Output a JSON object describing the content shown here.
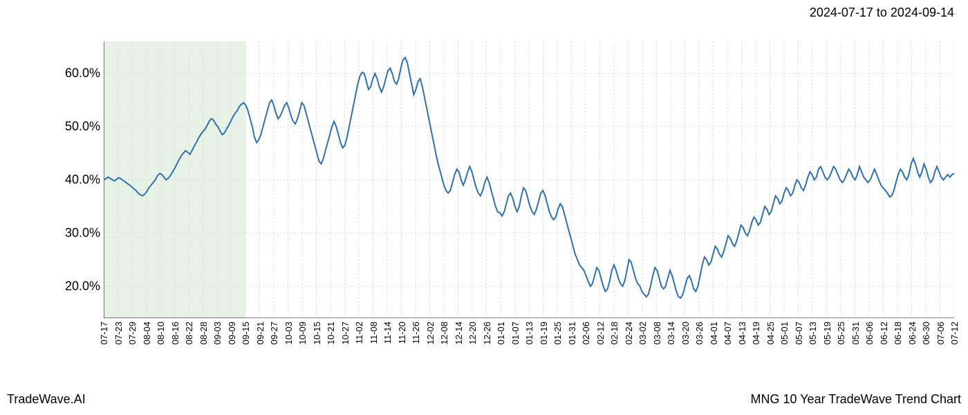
{
  "header": {
    "date_range": "2024-07-17 to 2024-09-14"
  },
  "footer": {
    "left": "TradeWave.AI",
    "right": "MNG 10 Year TradeWave Trend Chart"
  },
  "chart": {
    "type": "line",
    "background_color": "#ffffff",
    "grid_color": "#cccccc",
    "grid_dash": "2,3",
    "spine_color": "#000000",
    "line_color": "#2e6fae",
    "line_width": 2,
    "highlight_fill": "#d9e8d4",
    "highlight_opacity": 0.6,
    "highlight_start_label": "07-17",
    "highlight_end_label": "09-15",
    "ylim": [
      14,
      66
    ],
    "yticks": [
      20,
      30,
      40,
      50,
      60
    ],
    "ytick_labels": [
      "20.0%",
      "30.0%",
      "40.0%",
      "50.0%",
      "60.0%"
    ],
    "ytick_fontsize": 18,
    "xtick_fontsize": 13,
    "xtick_rotation": 90,
    "x_labels": [
      "07-17",
      "07-23",
      "07-29",
      "08-04",
      "08-10",
      "08-16",
      "08-22",
      "08-28",
      "09-03",
      "09-09",
      "09-15",
      "09-21",
      "09-27",
      "10-03",
      "10-09",
      "10-15",
      "10-21",
      "10-27",
      "11-02",
      "11-08",
      "11-14",
      "11-20",
      "11-26",
      "12-02",
      "12-08",
      "12-14",
      "12-20",
      "12-26",
      "01-01",
      "01-07",
      "01-13",
      "01-19",
      "01-25",
      "01-31",
      "02-06",
      "02-12",
      "02-18",
      "02-24",
      "03-02",
      "03-08",
      "03-14",
      "03-20",
      "03-26",
      "04-01",
      "04-07",
      "04-13",
      "04-19",
      "04-25",
      "05-01",
      "05-07",
      "05-13",
      "05-19",
      "05-25",
      "05-31",
      "06-06",
      "06-12",
      "06-18",
      "06-24",
      "06-30",
      "07-06",
      "07-12"
    ],
    "series": [
      40.0,
      40.2,
      40.5,
      40.3,
      40.0,
      39.8,
      40.1,
      40.4,
      40.2,
      39.9,
      39.6,
      39.3,
      39.0,
      38.7,
      38.3,
      38.0,
      37.5,
      37.2,
      37.0,
      37.3,
      37.8,
      38.5,
      39.0,
      39.5,
      40.0,
      40.8,
      41.2,
      41.0,
      40.5,
      40.0,
      40.3,
      40.8,
      41.5,
      42.2,
      43.0,
      43.8,
      44.5,
      45.0,
      45.5,
      45.2,
      44.8,
      45.5,
      46.3,
      47.0,
      47.8,
      48.5,
      49.0,
      49.5,
      50.2,
      51.0,
      51.5,
      51.2,
      50.5,
      50.0,
      49.2,
      48.5,
      48.8,
      49.5,
      50.2,
      51.0,
      51.8,
      52.5,
      53.0,
      53.8,
      54.2,
      54.5,
      54.0,
      53.0,
      51.5,
      50.0,
      48.0,
      47.0,
      47.5,
      48.5,
      50.0,
      51.5,
      53.0,
      54.5,
      55.0,
      54.0,
      52.5,
      51.5,
      52.0,
      53.0,
      54.0,
      54.5,
      53.5,
      52.0,
      51.0,
      50.5,
      51.5,
      53.0,
      54.5,
      54.0,
      52.5,
      51.0,
      49.5,
      48.0,
      46.5,
      45.0,
      43.5,
      43.0,
      44.0,
      45.5,
      47.0,
      48.5,
      50.0,
      51.0,
      50.0,
      48.5,
      47.0,
      46.0,
      46.5,
      48.0,
      50.0,
      52.0,
      54.0,
      56.0,
      58.0,
      59.5,
      60.2,
      60.0,
      58.5,
      57.0,
      57.5,
      59.0,
      60.0,
      59.0,
      57.5,
      56.5,
      57.5,
      59.0,
      60.5,
      61.0,
      60.0,
      58.5,
      58.0,
      59.0,
      61.0,
      62.5,
      63.0,
      62.0,
      60.0,
      58.0,
      56.0,
      57.0,
      58.5,
      59.0,
      57.5,
      55.5,
      53.5,
      51.5,
      49.5,
      47.5,
      45.5,
      43.5,
      42.0,
      40.5,
      39.0,
      38.0,
      37.5,
      38.0,
      39.5,
      41.0,
      42.0,
      41.5,
      40.0,
      39.0,
      40.0,
      41.5,
      42.5,
      41.5,
      40.0,
      38.5,
      37.5,
      37.0,
      38.0,
      39.5,
      40.5,
      39.5,
      38.0,
      36.5,
      35.0,
      34.0,
      33.8,
      33.2,
      34.0,
      35.5,
      37.0,
      37.5,
      36.5,
      35.0,
      34.0,
      35.0,
      37.0,
      38.5,
      38.0,
      36.5,
      35.0,
      34.0,
      33.5,
      34.5,
      36.0,
      37.5,
      38.0,
      37.0,
      35.5,
      34.0,
      33.0,
      32.5,
      33.0,
      34.5,
      35.5,
      35.0,
      33.5,
      32.0,
      30.5,
      29.0,
      27.5,
      26.0,
      25.0,
      24.0,
      23.5,
      23.0,
      22.0,
      21.0,
      20.0,
      20.5,
      22.0,
      23.5,
      23.0,
      21.5,
      20.0,
      19.0,
      19.5,
      21.0,
      23.0,
      24.0,
      23.0,
      21.5,
      20.5,
      20.0,
      21.0,
      23.0,
      25.0,
      24.5,
      23.0,
      21.5,
      20.5,
      20.0,
      19.0,
      18.5,
      18.0,
      18.5,
      20.0,
      22.0,
      23.5,
      23.0,
      21.5,
      20.0,
      19.5,
      20.0,
      21.5,
      23.0,
      22.0,
      20.5,
      19.0,
      18.0,
      17.8,
      18.5,
      20.0,
      21.5,
      22.0,
      21.0,
      19.5,
      19.0,
      20.0,
      22.0,
      24.0,
      25.5,
      25.0,
      24.0,
      24.5,
      26.0,
      27.5,
      27.0,
      26.0,
      25.5,
      26.5,
      28.0,
      29.5,
      29.0,
      28.0,
      27.5,
      28.5,
      30.0,
      31.5,
      31.0,
      30.0,
      29.5,
      30.5,
      32.0,
      33.0,
      32.5,
      31.5,
      32.0,
      33.5,
      35.0,
      34.5,
      33.5,
      34.0,
      35.5,
      37.0,
      36.5,
      35.5,
      36.0,
      37.5,
      38.5,
      38.0,
      37.0,
      37.5,
      39.0,
      40.0,
      39.5,
      38.5,
      38.0,
      39.0,
      40.5,
      41.5,
      41.0,
      40.0,
      40.5,
      42.0,
      42.5,
      41.5,
      40.5,
      40.0,
      40.5,
      41.5,
      42.5,
      42.0,
      41.0,
      40.0,
      39.5,
      40.0,
      41.0,
      42.0,
      41.5,
      40.5,
      40.0,
      41.0,
      42.5,
      41.5,
      40.5,
      40.0,
      39.5,
      40.0,
      41.0,
      42.0,
      41.0,
      40.0,
      39.0,
      38.5,
      38.0,
      37.5,
      36.8,
      37.0,
      38.0,
      39.5,
      41.0,
      42.0,
      41.5,
      40.5,
      40.0,
      41.0,
      43.0,
      44.0,
      43.0,
      41.5,
      40.5,
      41.5,
      43.0,
      42.0,
      40.5,
      39.5,
      40.0,
      41.5,
      42.5,
      41.5,
      40.5,
      40.0,
      40.5,
      41.0,
      40.5,
      41.0,
      41.2
    ]
  }
}
